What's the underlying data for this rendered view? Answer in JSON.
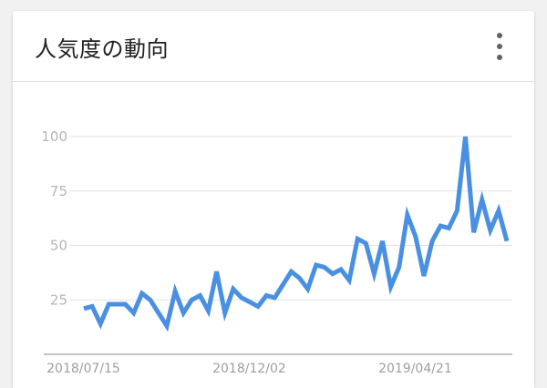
{
  "card": {
    "title": "人気度の動向"
  },
  "colors": {
    "line": "#4a90e2",
    "grid": "#e3e3e3",
    "baseline": "#b0b0b0"
  },
  "chart_data": {
    "type": "line",
    "title": "",
    "xlabel": "",
    "ylabel": "",
    "ylim": [
      0,
      100
    ],
    "y_ticks": [
      25,
      50,
      75,
      100
    ],
    "x_tick_labels": [
      "2018/07/15",
      "2018/12/02",
      "2019/04/21"
    ],
    "x_tick_indices": [
      0,
      20,
      40
    ],
    "grid": true,
    "series": [
      {
        "values": [
          21,
          22,
          14,
          23,
          23,
          23,
          19,
          28,
          25,
          19,
          13,
          29,
          19,
          25,
          27,
          20,
          38,
          19,
          30,
          26,
          24,
          22,
          27,
          26,
          32,
          38,
          35,
          30,
          41,
          40,
          37,
          39,
          34,
          53,
          51,
          37,
          52,
          31,
          40,
          64,
          54,
          36,
          52,
          59,
          58,
          66,
          100,
          56,
          71,
          57,
          66,
          52
        ]
      }
    ]
  }
}
